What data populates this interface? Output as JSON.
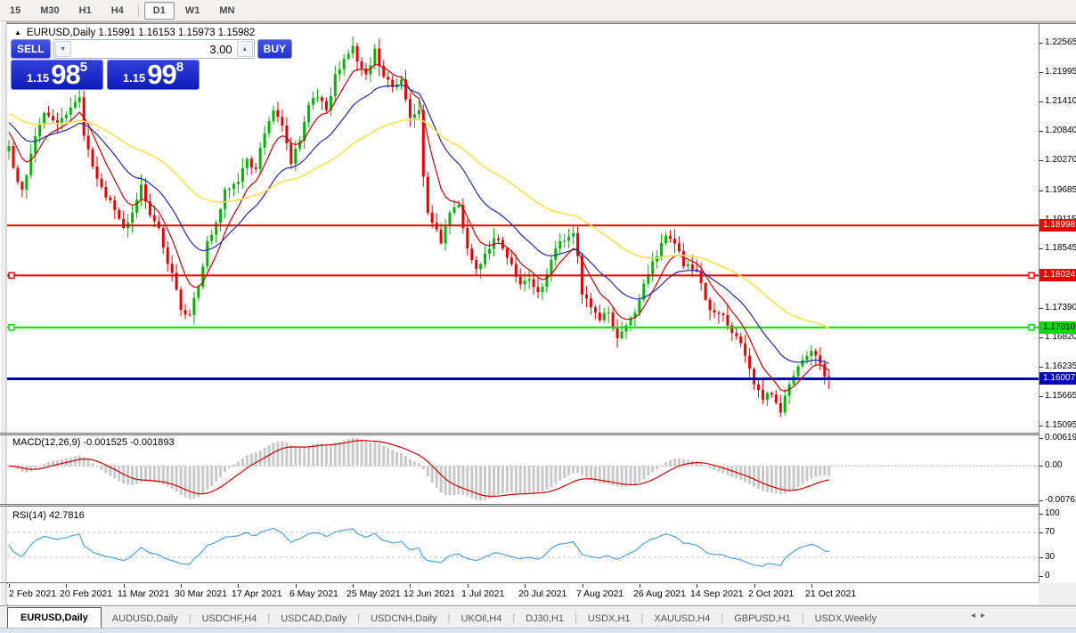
{
  "icons": {
    "title_arrow": "▲",
    "volume_down": "▼",
    "volume_up": "▲",
    "tab_scroll_left": "◂",
    "tab_scroll_right": "▸"
  },
  "toolbar": {
    "timeframes": [
      "15",
      "M30",
      "H1",
      "H4",
      "D1",
      "W1",
      "MN"
    ],
    "active": "D1",
    "separator_before": "D1"
  },
  "chart": {
    "title": "EURUSD,Daily  1.15991 1.16153 1.15973 1.15982",
    "symbol": "EURUSD",
    "period": "Daily",
    "ohlc": {
      "open": "1.15991",
      "high": "1.16153",
      "low": "1.15973",
      "close": "1.15982"
    }
  },
  "trade_panel": {
    "sell_label": "SELL",
    "buy_label": "BUY",
    "volume": "3.00",
    "sell_price": {
      "prefix": "1.15",
      "big": "98",
      "sup": "5"
    },
    "buy_price": {
      "prefix": "1.15",
      "big": "99",
      "sup": "8"
    }
  },
  "price_axis": {
    "ticks": [
      "1.22565",
      "1.21995",
      "1.21410",
      "1.20840",
      "1.20270",
      "1.19685",
      "1.19115",
      "1.18545",
      "1.17960",
      "1.17390",
      "1.16820",
      "1.16235",
      "1.15665",
      "1.15095"
    ]
  },
  "hlines": [
    {
      "price": 1.18998,
      "label": "1.18998",
      "color": "#ee0000",
      "label_bg": "#ee0000",
      "label_fg": "#ffffff",
      "width": 2,
      "handles": false
    },
    {
      "price": 1.18024,
      "label": "1.18024",
      "color": "#ee0000",
      "label_bg": "#ee0000",
      "label_fg": "#ffffff",
      "width": 2,
      "handles": true
    },
    {
      "price": 1.1701,
      "label": "1.17010",
      "color": "#00dd00",
      "label_bg": "#00dd00",
      "label_fg": "#000000",
      "width": 2,
      "handles": true
    },
    {
      "price": 1.16007,
      "label": "1.16007",
      "color": "#0000cc",
      "label_bg": "#0000bb",
      "label_fg": "#ffffff",
      "width": 3,
      "handles": false
    }
  ],
  "macd_panel": {
    "label": "MACD(12,26,9) -0.001525 -0.001893",
    "axis": [
      {
        "v": 0.006193,
        "label": "0.006193"
      },
      {
        "v": 0,
        "label": "0.00"
      },
      {
        "v": -0.00762,
        "label": "-0.00762"
      }
    ]
  },
  "rsi_panel": {
    "label": "RSI(14) 42.7816",
    "axis": [
      {
        "v": 100,
        "label": "100"
      },
      {
        "v": 70,
        "label": "70"
      },
      {
        "v": 30,
        "label": "30"
      },
      {
        "v": 0,
        "label": "0"
      }
    ]
  },
  "date_axis": {
    "labels": [
      "2 Feb 2021",
      "20 Feb 2021",
      "11 Mar 2021",
      "30 Mar 2021",
      "17 Apr 2021",
      "6 May 2021",
      "25 May 2021",
      "12 Jun 2021",
      "1 Jul 2021",
      "20 Jul 2021",
      "7 Aug 2021",
      "26 Aug 2021",
      "14 Sep 2021",
      "2 Oct 2021",
      "21 Oct 2021"
    ],
    "bar_indices": [
      0,
      13,
      26,
      39,
      52,
      65,
      78,
      91,
      104,
      117,
      130,
      143,
      156,
      169,
      182
    ]
  },
  "tabs": {
    "items": [
      "EURUSD,Daily",
      "AUDUSD,Daily",
      "USDCHF,H4",
      "USDCAD,Daily",
      "USDCNH,Daily",
      "UKOil,H4",
      "DJ30,H1",
      "USDX,H1",
      "XAUUSD,H4",
      "GBPUSD,H1",
      "USDX,Weekly"
    ],
    "active": "EURUSD,Daily"
  },
  "colors": {
    "up": "#00b300",
    "down": "#e60000",
    "ma_fast": "#cc0000",
    "ma_mid": "#2525a8",
    "ma_slow": "#ffdf4d",
    "macd_hist": "#c9c9c9",
    "macd_signal": "#cc0000",
    "rsi_line": "#4aa3df",
    "grid_dash": "#bbbbbb"
  },
  "chart_data": {
    "type": "candlestick",
    "symbol": "EURUSD",
    "period": "Daily",
    "x_range": {
      "start": "2 Feb 2021",
      "end": "29 Oct 2021"
    },
    "y_range": [
      1.147,
      1.229
    ],
    "bar_count": 187,
    "first_open": 1.2045,
    "last_close": 1.15982,
    "close_anchors": [
      [
        0,
        1.2055
      ],
      [
        2,
        1.1985
      ],
      [
        3,
        1.197
      ],
      [
        5,
        1.204
      ],
      [
        8,
        1.212
      ],
      [
        11,
        1.21
      ],
      [
        14,
        1.213
      ],
      [
        16,
        1.215
      ],
      [
        17,
        1.2075
      ],
      [
        19,
        1.2015
      ],
      [
        21,
        1.1975
      ],
      [
        24,
        1.193
      ],
      [
        26,
        1.1895
      ],
      [
        28,
        1.1925
      ],
      [
        30,
        1.198
      ],
      [
        32,
        1.192
      ],
      [
        34,
        1.1895
      ],
      [
        36,
        1.1825
      ],
      [
        38,
        1.1775
      ],
      [
        39,
        1.1735
      ],
      [
        41,
        1.1725
      ],
      [
        43,
        1.178
      ],
      [
        45,
        1.187
      ],
      [
        47,
        1.1905
      ],
      [
        49,
        1.197
      ],
      [
        52,
        1.1985
      ],
      [
        54,
        1.203
      ],
      [
        56,
        1.201
      ],
      [
        58,
        1.208
      ],
      [
        60,
        1.2125
      ],
      [
        62,
        1.2095
      ],
      [
        64,
        1.202
      ],
      [
        66,
        1.2065
      ],
      [
        68,
        1.2135
      ],
      [
        70,
        1.215
      ],
      [
        72,
        1.2125
      ],
      [
        74,
        1.2195
      ],
      [
        76,
        1.2225
      ],
      [
        78,
        1.225
      ],
      [
        79,
        1.222
      ],
      [
        81,
        1.2195
      ],
      [
        83,
        1.2245
      ],
      [
        85,
        1.219
      ],
      [
        87,
        1.217
      ],
      [
        89,
        1.2185
      ],
      [
        91,
        1.211
      ],
      [
        93,
        1.2125
      ],
      [
        94,
        1.1995
      ],
      [
        95,
        1.1925
      ],
      [
        96,
        1.1905
      ],
      [
        98,
        1.1865
      ],
      [
        100,
        1.1925
      ],
      [
        102,
        1.194
      ],
      [
        104,
        1.1855
      ],
      [
        106,
        1.1815
      ],
      [
        108,
        1.1845
      ],
      [
        110,
        1.1875
      ],
      [
        112,
        1.1855
      ],
      [
        114,
        1.1825
      ],
      [
        116,
        1.1785
      ],
      [
        118,
        1.1795
      ],
      [
        120,
        1.177
      ],
      [
        122,
        1.1805
      ],
      [
        124,
        1.1855
      ],
      [
        126,
        1.187
      ],
      [
        128,
        1.1885
      ],
      [
        129,
        1.184
      ],
      [
        130,
        1.1765
      ],
      [
        132,
        1.174
      ],
      [
        134,
        1.1715
      ],
      [
        136,
        1.173
      ],
      [
        138,
        1.168
      ],
      [
        140,
        1.1705
      ],
      [
        142,
        1.173
      ],
      [
        143,
        1.1755
      ],
      [
        145,
        1.1805
      ],
      [
        147,
        1.184
      ],
      [
        149,
        1.188
      ],
      [
        151,
        1.1865
      ],
      [
        153,
        1.182
      ],
      [
        156,
        1.181
      ],
      [
        158,
        1.1755
      ],
      [
        160,
        1.173
      ],
      [
        162,
        1.1725
      ],
      [
        164,
        1.169
      ],
      [
        166,
        1.167
      ],
      [
        168,
        1.162
      ],
      [
        169,
        1.159
      ],
      [
        171,
        1.156
      ],
      [
        173,
        1.157
      ],
      [
        175,
        1.1535
      ],
      [
        177,
        1.159
      ],
      [
        179,
        1.1625
      ],
      [
        181,
        1.1645
      ],
      [
        182,
        1.1655
      ],
      [
        184,
        1.163
      ],
      [
        185,
        1.1605
      ],
      [
        186,
        1.15982
      ]
    ],
    "moving_averages": [
      {
        "name": "MA fast",
        "period": 8,
        "seed": 1.209,
        "color_key": "ma_fast"
      },
      {
        "name": "MA mid",
        "period": 21,
        "seed": 1.2105,
        "color_key": "ma_mid"
      },
      {
        "name": "MA slow",
        "period": 55,
        "seed": 1.212,
        "color_key": "ma_slow"
      }
    ],
    "indicators": {
      "macd": {
        "fast": 12,
        "slow": 26,
        "signal": 9,
        "current": -0.001525,
        "signal_current": -0.001893,
        "y_range": [
          -0.00762,
          0.006193
        ]
      },
      "rsi": {
        "period": 14,
        "current": 42.7816,
        "levels": [
          70,
          30
        ],
        "y_range": [
          0,
          100
        ]
      }
    },
    "horizontal_lines": [
      1.18998,
      1.18024,
      1.1701,
      1.16007
    ]
  }
}
